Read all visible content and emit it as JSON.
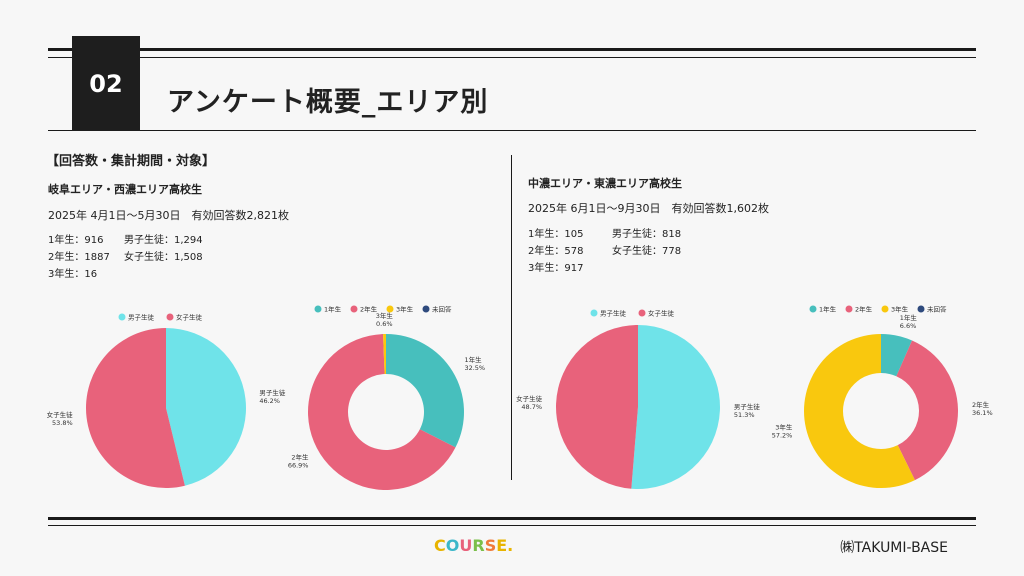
{
  "header": {
    "number": "02",
    "title": "アンケート概要_エリア別"
  },
  "section_heading": "【回答数・集計期間・対象】",
  "left": {
    "area": "岐阜エリア・西濃エリア高校生",
    "period": "2025年 4月1日〜5月30日　有効回答数2,821枚",
    "grades": [
      "1年生：916",
      "2年生：1887",
      "3年生：16"
    ],
    "genders": [
      "男子生徒：1,294",
      "女子生徒：1,508"
    ]
  },
  "right": {
    "area": "中濃エリア・東濃エリア高校生",
    "period": "2025年 6月1日〜9月30日　有効回答数1,602枚",
    "grades": [
      "1年生：105",
      "2年生：578",
      "3年生：917"
    ],
    "genders": [
      "男子生徒：818",
      "女子生徒：778"
    ]
  },
  "chart_data": [
    {
      "type": "pie",
      "name": "left-gender",
      "legend": [
        "男子生徒",
        "女子生徒"
      ],
      "labels": [
        "男子生徒",
        "女子生徒"
      ],
      "values": [
        46.2,
        53.8
      ],
      "pct_labels": [
        "46.2%",
        "53.8%"
      ],
      "colors": [
        "#6fe3e9",
        "#e8627b"
      ]
    },
    {
      "type": "pie",
      "donut": true,
      "name": "left-grade",
      "legend": [
        "1年生",
        "2年生",
        "3年生",
        "未回答"
      ],
      "legend_colors": [
        "#47bfbd",
        "#e8627b",
        "#f9c80e",
        "#2e4a7d"
      ],
      "labels": [
        "1年生",
        "2年生",
        "3年生"
      ],
      "values": [
        32.5,
        66.9,
        0.6
      ],
      "pct_labels": [
        "32.5%",
        "66.9%",
        "0.6%"
      ],
      "colors": [
        "#47bfbd",
        "#e8627b",
        "#f9c80e"
      ]
    },
    {
      "type": "pie",
      "name": "right-gender",
      "legend": [
        "男子生徒",
        "女子生徒"
      ],
      "labels": [
        "男子生徒",
        "女子生徒"
      ],
      "values": [
        51.3,
        48.7
      ],
      "pct_labels": [
        "51.3%",
        "48.7%"
      ],
      "colors": [
        "#6fe3e9",
        "#e8627b"
      ]
    },
    {
      "type": "pie",
      "donut": true,
      "name": "right-grade",
      "legend": [
        "1年生",
        "2年生",
        "3年生",
        "未回答"
      ],
      "legend_colors": [
        "#47bfbd",
        "#e8627b",
        "#f9c80e",
        "#2e4a7d"
      ],
      "labels": [
        "1年生",
        "2年生",
        "3年生"
      ],
      "values": [
        6.6,
        36.1,
        57.2
      ],
      "pct_labels": [
        "6.6%",
        "36.1%",
        "57.2%"
      ],
      "colors": [
        "#47bfbd",
        "#e8627b",
        "#f9c80e"
      ]
    }
  ],
  "footer": {
    "logo": "COURSE.",
    "company": "㈱TAKUMI-BASE"
  }
}
